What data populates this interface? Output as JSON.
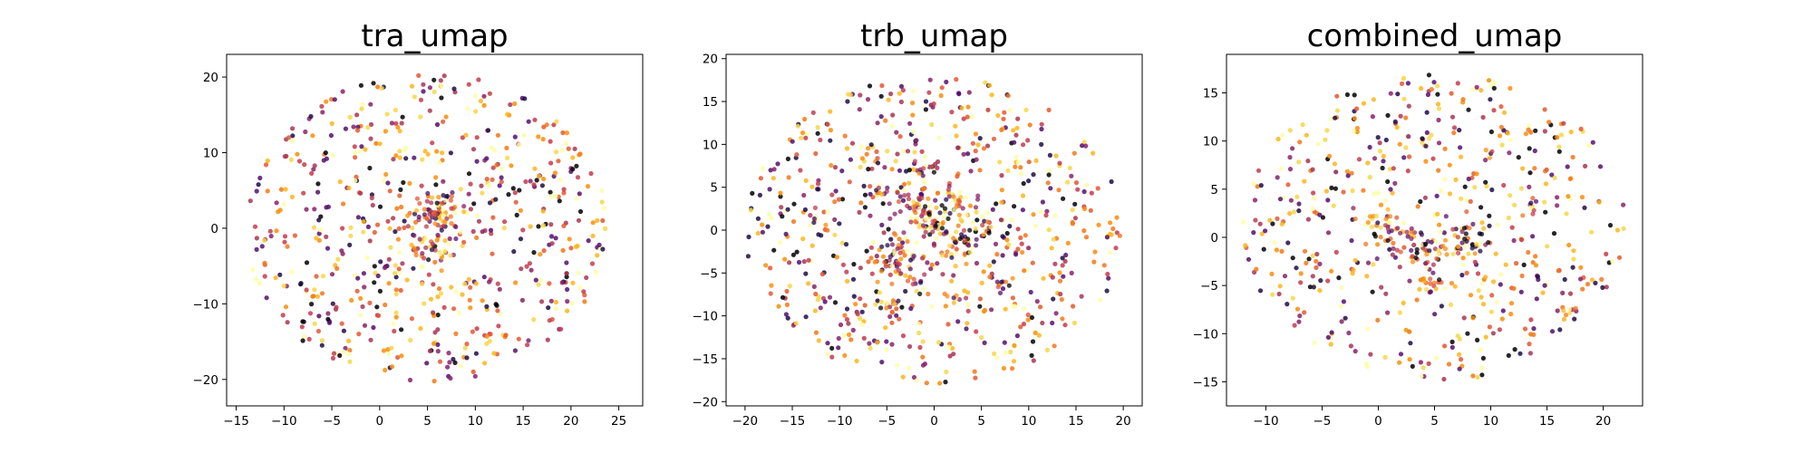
{
  "chart_data": [
    {
      "type": "scatter",
      "title": "tra_umap",
      "xlabel": "",
      "ylabel": "",
      "xlim": [
        -16,
        27.5
      ],
      "ylim": [
        -23.5,
        23
      ],
      "xticks": [
        -15,
        -10,
        -5,
        0,
        5,
        10,
        15,
        20,
        25
      ],
      "yticks": [
        -20,
        -10,
        0,
        10,
        20
      ],
      "grid": false,
      "legend": "none",
      "clusters": [
        {
          "x": 6,
          "y": 2,
          "spread": 1.3,
          "n": 70
        },
        {
          "x": 6,
          "y": -3,
          "spread": 1.0,
          "n": 25
        }
      ],
      "background": {
        "x": 5,
        "y": 0,
        "rx": 19,
        "ry": 20.5,
        "n": 650
      }
    },
    {
      "type": "scatter",
      "title": "trb_umap",
      "xlabel": "",
      "ylabel": "",
      "xlim": [
        -22,
        22
      ],
      "ylim": [
        -20.5,
        20.5
      ],
      "xticks": [
        -20,
        -15,
        -10,
        -5,
        0,
        5,
        10,
        15,
        20
      ],
      "yticks": [
        -20,
        -15,
        -10,
        -5,
        0,
        5,
        10,
        15,
        20
      ],
      "grid": false,
      "legend": "none",
      "clusters": [
        {
          "x": -2,
          "y": 2.5,
          "spread": 1.0,
          "n": 40
        },
        {
          "x": 2,
          "y": 3,
          "spread": 1.2,
          "n": 40
        },
        {
          "x": -3.5,
          "y": -3.5,
          "spread": 1.2,
          "n": 45
        },
        {
          "x": 2.5,
          "y": -1.5,
          "spread": 1.2,
          "n": 40
        },
        {
          "x": 0,
          "y": 0.5,
          "spread": 0.8,
          "n": 25
        },
        {
          "x": -1,
          "y": 7,
          "spread": 0.5,
          "n": 12
        },
        {
          "x": -5.5,
          "y": 4.5,
          "spread": 0.5,
          "n": 10
        },
        {
          "x": 5.5,
          "y": 0.5,
          "spread": 0.5,
          "n": 10
        },
        {
          "x": -5,
          "y": -9,
          "spread": 0.6,
          "n": 10
        },
        {
          "x": -2,
          "y": -6.5,
          "spread": 0.5,
          "n": 8
        },
        {
          "x": -12,
          "y": 1.5,
          "spread": 0.6,
          "n": 8
        },
        {
          "x": 7,
          "y": -6.5,
          "spread": 0.5,
          "n": 8
        },
        {
          "x": 2,
          "y": -8,
          "spread": 0.5,
          "n": 8
        }
      ],
      "background": {
        "x": 0,
        "y": 0,
        "rx": 20,
        "ry": 18,
        "n": 650
      }
    },
    {
      "type": "scatter",
      "title": "combined_umap",
      "xlabel": "",
      "ylabel": "",
      "xlim": [
        -13.5,
        23.5
      ],
      "ylim": [
        -17.5,
        19
      ],
      "xticks": [
        -10,
        -5,
        0,
        5,
        10,
        15,
        20
      ],
      "yticks": [
        -15,
        -10,
        -5,
        0,
        5,
        10,
        15
      ],
      "grid": false,
      "legend": "none",
      "clusters": [
        {
          "x": 1,
          "y": 1,
          "spread": 1.1,
          "n": 40
        },
        {
          "x": 4.5,
          "y": -1.5,
          "spread": 1.2,
          "n": 45
        },
        {
          "x": 8,
          "y": -0.5,
          "spread": 1.0,
          "n": 35
        },
        {
          "x": 5,
          "y": -4.5,
          "spread": 0.7,
          "n": 15
        },
        {
          "x": 13.5,
          "y": 3,
          "spread": 0.4,
          "n": 10
        },
        {
          "x": 17,
          "y": -7.5,
          "spread": 0.4,
          "n": 7
        },
        {
          "x": 4,
          "y": 10,
          "spread": 0.3,
          "n": 5
        },
        {
          "x": 10,
          "y": 8.5,
          "spread": 0.3,
          "n": 5
        }
      ],
      "background": {
        "x": 5,
        "y": 1,
        "rx": 17,
        "ry": 16,
        "n": 520
      }
    }
  ],
  "colors": {
    "palette": [
      "#000004",
      "#1f0c48",
      "#550f6d",
      "#88226a",
      "#a83655",
      "#c43c4e",
      "#e35933",
      "#f37819",
      "#f98e09",
      "#fbb61a",
      "#f6d746",
      "#fcffa4"
    ],
    "axes": "#000000",
    "background": "#ffffff"
  }
}
